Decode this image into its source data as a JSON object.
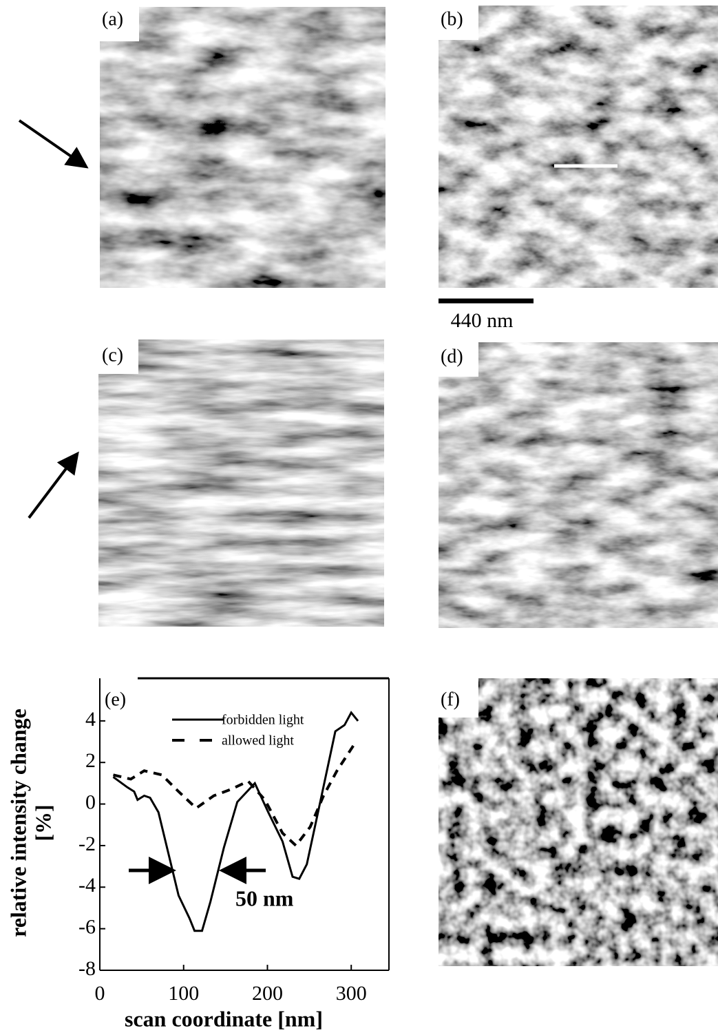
{
  "panels": [
    {
      "label": "(a)"
    },
    {
      "label": "(b)"
    },
    {
      "label": "(c)"
    },
    {
      "label": "(d)"
    },
    {
      "label": "(f)"
    }
  ],
  "scale_bar": {
    "label": "440 nm"
  },
  "chart_data": {
    "type": "line",
    "panel_label": "(e)",
    "xlabel": "scan coordinate [nm]",
    "ylabel": "relative intensity change",
    "ylabel_unit": "[%]",
    "annotation": "50 nm",
    "xlim": [
      0,
      345
    ],
    "ylim": [
      -8,
      6.05
    ],
    "xticks": [
      0,
      100,
      200,
      300
    ],
    "yticks": [
      -8,
      -6,
      -4,
      -2,
      0,
      2,
      4
    ],
    "series": [
      {
        "name": "forbidden light",
        "color": "#000000",
        "dash": "solid",
        "x": [
          16,
          33,
          41,
          45,
          53,
          60,
          70,
          82,
          94,
          107,
          113,
          122,
          132,
          148,
          164,
          185,
          201,
          218,
          230,
          238,
          247,
          263,
          281,
          292,
          300,
          308
        ],
        "values": [
          1.3,
          0.8,
          0.6,
          0.2,
          0.4,
          0.3,
          -0.4,
          -2.4,
          -4.4,
          -5.5,
          -6.1,
          -6.1,
          -4.7,
          -2.1,
          0.1,
          1,
          -0.4,
          -1.8,
          -3.5,
          -3.6,
          -2.9,
          0.1,
          3.5,
          3.8,
          4.4,
          4.0
        ]
      },
      {
        "name": "allowed light",
        "color": "#000000",
        "dash": "dashed",
        "x": [
          16,
          37,
          53,
          74,
          94,
          115,
          136,
          156,
          177,
          197,
          218,
          234,
          251,
          267,
          283,
          304
        ],
        "values": [
          1.4,
          1.2,
          1.6,
          1.4,
          0.6,
          -0.2,
          0.4,
          0.7,
          1.1,
          0.2,
          -1.4,
          -2.0,
          -1.1,
          0.4,
          1.6,
          2.9
        ]
      }
    ]
  }
}
